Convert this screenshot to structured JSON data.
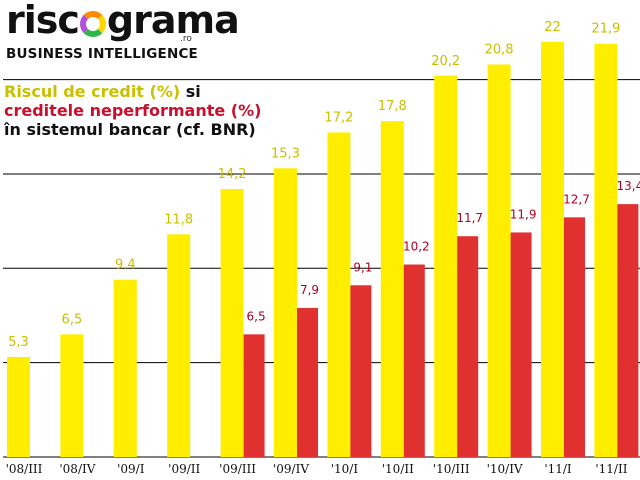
{
  "logo": {
    "left": "risc",
    "right": "grama",
    "tld": ".ro",
    "tagline": "BUSINESS INTELLIGENCE"
  },
  "colors": {
    "series1": "#ffee00",
    "series2": "#e03030",
    "series1_label": "#c9c000",
    "series2_label": "#b00020",
    "grid": "#000000"
  },
  "chart_data": {
    "type": "bar",
    "title_parts": {
      "series1_name": "Riscul de credit (%)",
      "joiner": "si",
      "series2_name": "creditele neperformante (%)",
      "line3": "în sistemul bancar (cf. BNR)"
    },
    "categories": [
      "'08/III",
      "'08/IV",
      "'09/I",
      "'09/II",
      "'09/III",
      "'09/IV",
      "'10/I",
      "'10/II",
      "'10/III",
      "'10/IV",
      "'11/I",
      "'11/II"
    ],
    "series": [
      {
        "name": "Riscul de credit (%)",
        "values": [
          5.3,
          6.5,
          9.4,
          11.8,
          14.2,
          15.3,
          17.2,
          17.8,
          20.2,
          20.8,
          22,
          21.9
        ],
        "labels": [
          "5,3",
          "6,5",
          "9,4",
          "11,8",
          "14,2",
          "15,3",
          "17,2",
          "17,8",
          "20,2",
          "20,8",
          "22",
          "21,9"
        ]
      },
      {
        "name": "creditele neperformante (%)",
        "values": [
          null,
          null,
          null,
          null,
          6.5,
          7.9,
          9.1,
          10.2,
          11.7,
          11.9,
          12.7,
          13.4
        ],
        "labels": [
          null,
          null,
          null,
          null,
          "6,5",
          "7,9",
          "9,1",
          "10,2",
          "11,7",
          "11,9",
          "12,7",
          "13,4"
        ]
      }
    ],
    "ylim": [
      0,
      25
    ],
    "grid": true,
    "gridlines": [
      5,
      10,
      15,
      20
    ]
  }
}
